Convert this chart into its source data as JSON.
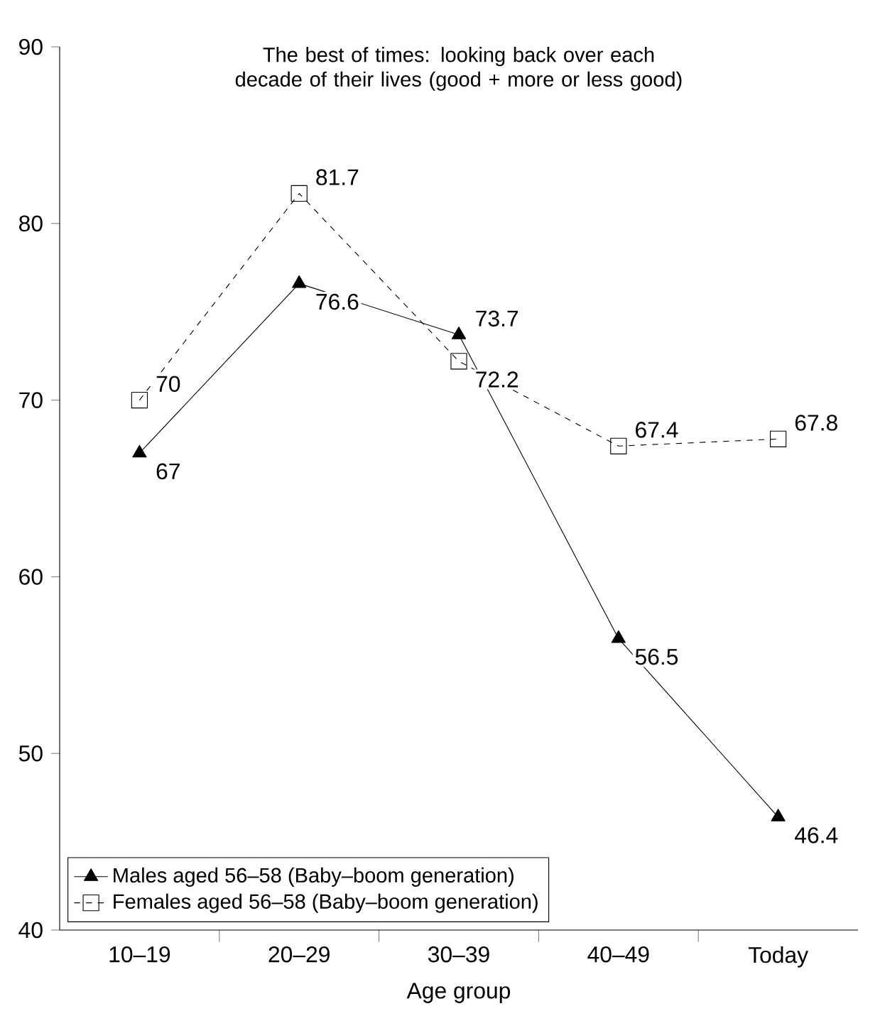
{
  "chart_data": {
    "type": "line",
    "title": "The best of times: looking back over each decade of their lives (good + more or less good)",
    "xlabel": "Age group",
    "categories": [
      "10–19",
      "20–29",
      "30–39",
      "40–49",
      "Today"
    ],
    "series": [
      {
        "name": "Males aged 56–58 (Baby–boom generation)",
        "color": "#000000",
        "marker": "triangle",
        "line_style": "solid",
        "values": [
          67,
          76.6,
          73.7,
          56.5,
          46.4
        ]
      },
      {
        "name": "Females aged 56–58 (Baby–boom generation)",
        "color": "#000000",
        "marker": "square",
        "line_style": "dashed",
        "values": [
          70,
          81.7,
          72.2,
          67.4,
          67.8
        ]
      }
    ],
    "ylim": [
      40,
      90
    ],
    "yticks": [
      40,
      50,
      60,
      70,
      80,
      90
    ],
    "grid": false,
    "legend": "bottom left",
    "data_labels": true
  }
}
